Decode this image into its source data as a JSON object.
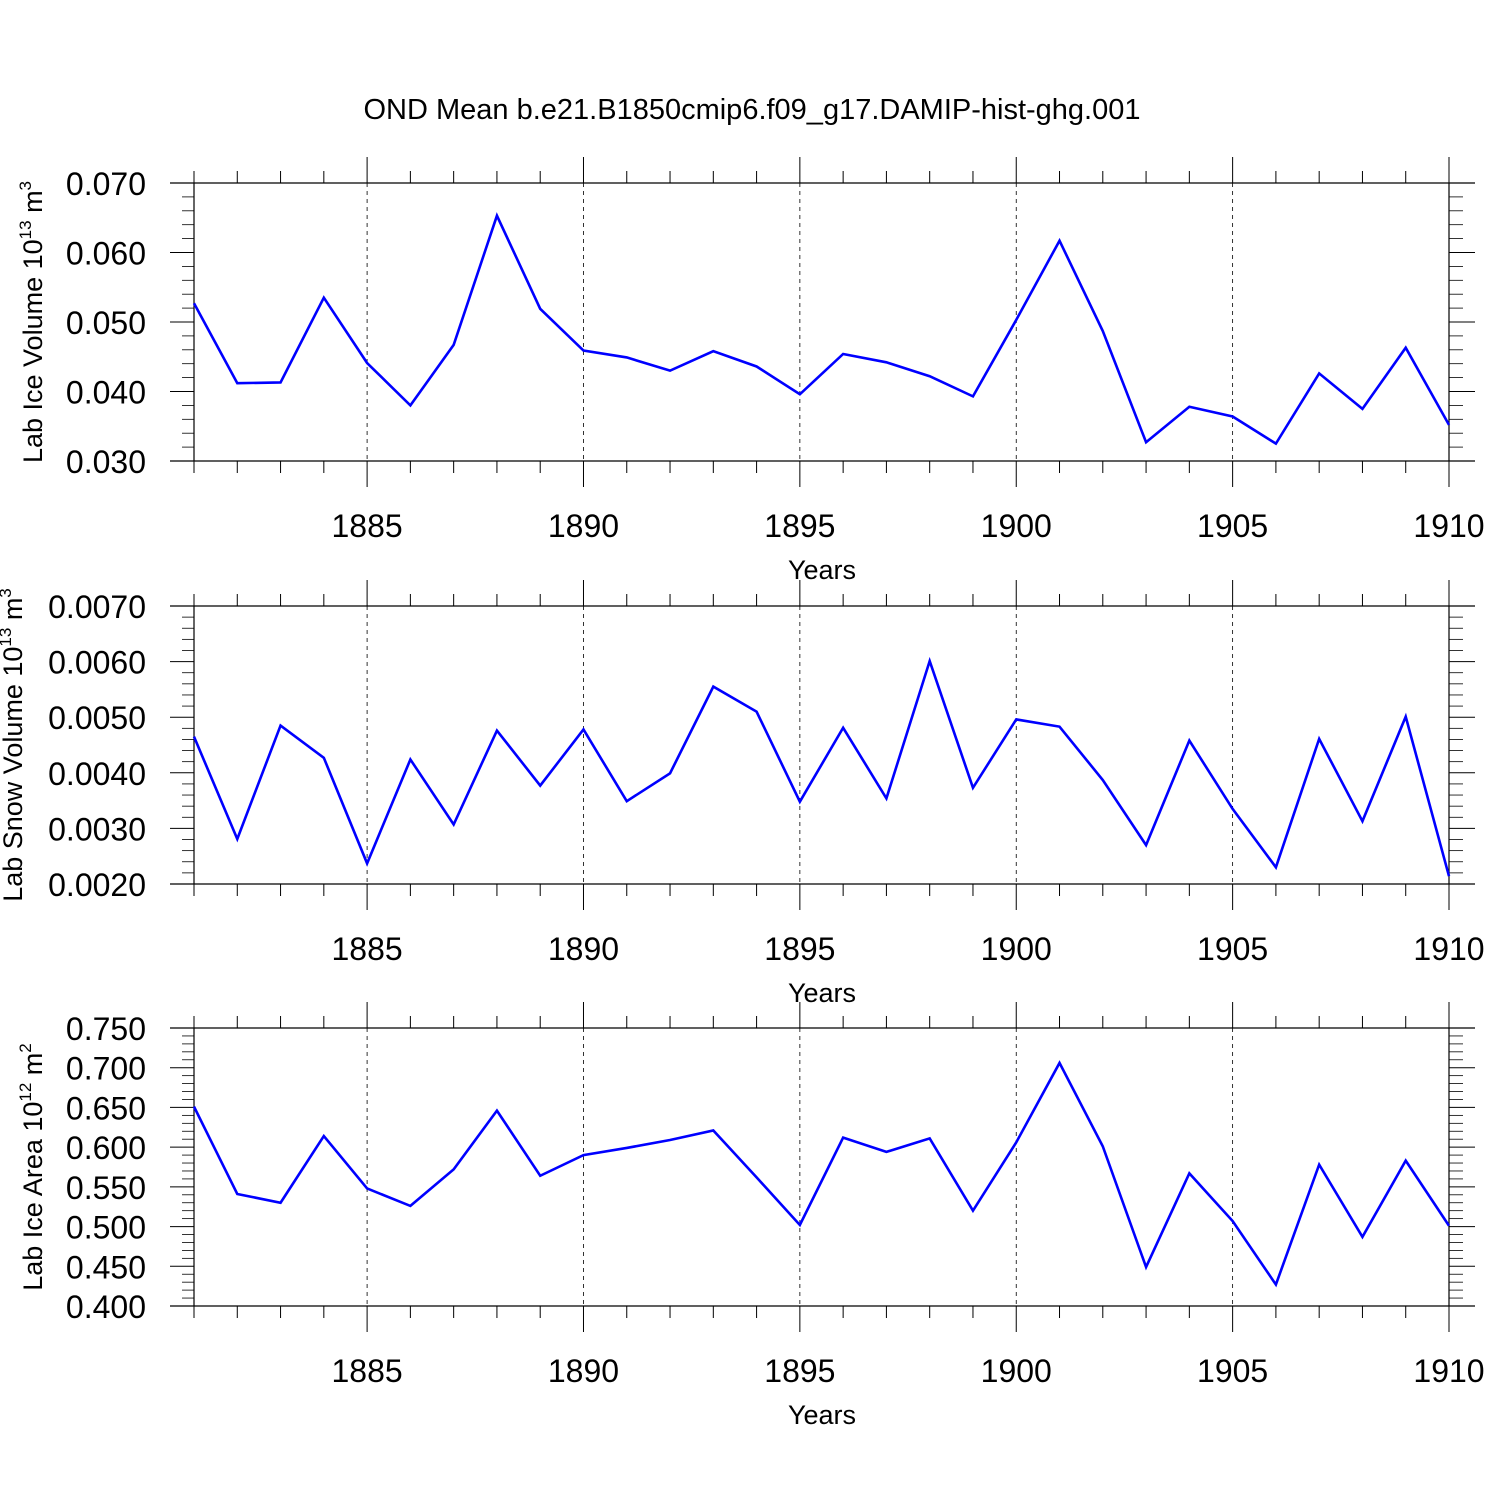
{
  "figure_title": "OND Mean b.e21.B1850cmip6.f09_g17.DAMIP-hist-ghg.001",
  "colors": {
    "line": "#0000ff",
    "axis": "#000000",
    "grid": "#000000"
  },
  "chart_data": [
    {
      "type": "line",
      "title": "OND Mean b.e21.B1850cmip6.f09_g17.DAMIP-hist-ghg.001",
      "xlabel": "Years",
      "ylabel": {
        "main": "Lab Ice Volume 10",
        "exponent": "13",
        "unit": " m",
        "unit_exponent": "3"
      },
      "xlim": [
        1881,
        1910
      ],
      "ylim": [
        0.03,
        0.07
      ],
      "xticks": [
        1885,
        1890,
        1895,
        1900,
        1905,
        1910
      ],
      "xtick_labels": [
        "1885",
        "1890",
        "1895",
        "1900",
        "1905",
        "1910"
      ],
      "yticks": [
        0.03,
        0.04,
        0.05,
        0.06,
        0.07
      ],
      "ytick_labels": [
        "0.030",
        "0.040",
        "0.050",
        "0.060",
        "0.070"
      ],
      "grid": "vertical dashed at major x ticks",
      "x": [
        1881,
        1882,
        1883,
        1884,
        1885,
        1886,
        1887,
        1888,
        1889,
        1890,
        1891,
        1892,
        1893,
        1894,
        1895,
        1896,
        1897,
        1898,
        1899,
        1900,
        1901,
        1902,
        1903,
        1904,
        1905,
        1906,
        1907,
        1908,
        1909,
        1910
      ],
      "series": [
        {
          "name": "Lab Ice Volume",
          "values": [
            0.0527,
            0.0412,
            0.0413,
            0.0535,
            0.0441,
            0.038,
            0.0467,
            0.0653,
            0.0519,
            0.0459,
            0.0449,
            0.043,
            0.0458,
            0.0436,
            0.0396,
            0.0454,
            0.0442,
            0.0422,
            0.0393,
            0.0503,
            0.0617,
            0.0487,
            0.0327,
            0.0378,
            0.0364,
            0.0325,
            0.0426,
            0.0375,
            0.0463,
            0.0352
          ]
        }
      ]
    },
    {
      "type": "line",
      "xlabel": "Years",
      "ylabel": {
        "main": "Lab Snow Volume 10",
        "exponent": "13",
        "unit": " m",
        "unit_exponent": "3"
      },
      "xlim": [
        1881,
        1910
      ],
      "ylim": [
        0.002,
        0.007
      ],
      "xticks": [
        1885,
        1890,
        1895,
        1900,
        1905,
        1910
      ],
      "xtick_labels": [
        "1885",
        "1890",
        "1895",
        "1900",
        "1905",
        "1910"
      ],
      "yticks": [
        0.002,
        0.003,
        0.004,
        0.005,
        0.006,
        0.007
      ],
      "ytick_labels": [
        "0.0020",
        "0.0030",
        "0.0040",
        "0.0050",
        "0.0060",
        "0.0070"
      ],
      "grid": "vertical dashed at major x ticks",
      "x": [
        1881,
        1882,
        1883,
        1884,
        1885,
        1886,
        1887,
        1888,
        1889,
        1890,
        1891,
        1892,
        1893,
        1894,
        1895,
        1896,
        1897,
        1898,
        1899,
        1900,
        1901,
        1902,
        1903,
        1904,
        1905,
        1906,
        1907,
        1908,
        1909,
        1910
      ],
      "series": [
        {
          "name": "Lab Snow Volume",
          "values": [
            0.00465,
            0.00281,
            0.00485,
            0.00427,
            0.00237,
            0.00424,
            0.00307,
            0.00476,
            0.00377,
            0.00478,
            0.00349,
            0.00399,
            0.00555,
            0.0051,
            0.00348,
            0.00481,
            0.00354,
            0.00601,
            0.00373,
            0.00496,
            0.00483,
            0.00387,
            0.0027,
            0.00458,
            0.00335,
            0.0023,
            0.00461,
            0.00313,
            0.00501,
            0.00214
          ]
        }
      ]
    },
    {
      "type": "line",
      "xlabel": "Years",
      "ylabel": {
        "main": "Lab Ice Area 10",
        "exponent": "12",
        "unit": " m",
        "unit_exponent": "2"
      },
      "xlim": [
        1881,
        1910
      ],
      "ylim": [
        0.4,
        0.75
      ],
      "xticks": [
        1885,
        1890,
        1895,
        1900,
        1905,
        1910
      ],
      "xtick_labels": [
        "1885",
        "1890",
        "1895",
        "1900",
        "1905",
        "1910"
      ],
      "yticks": [
        0.4,
        0.45,
        0.5,
        0.55,
        0.6,
        0.65,
        0.7,
        0.75
      ],
      "ytick_labels": [
        "0.400",
        "0.450",
        "0.500",
        "0.550",
        "0.600",
        "0.650",
        "0.700",
        "0.750"
      ],
      "grid": "vertical dashed at major x ticks",
      "x": [
        1881,
        1882,
        1883,
        1884,
        1885,
        1886,
        1887,
        1888,
        1889,
        1890,
        1891,
        1892,
        1893,
        1894,
        1895,
        1896,
        1897,
        1898,
        1899,
        1900,
        1901,
        1902,
        1903,
        1904,
        1905,
        1906,
        1907,
        1908,
        1909,
        1910
      ],
      "series": [
        {
          "name": "Lab Ice Area",
          "values": [
            0.651,
            0.541,
            0.53,
            0.614,
            0.548,
            0.526,
            0.572,
            0.646,
            0.564,
            0.59,
            0.599,
            0.609,
            0.621,
            0.562,
            0.502,
            0.612,
            0.594,
            0.611,
            0.52,
            0.606,
            0.706,
            0.601,
            0.449,
            0.567,
            0.507,
            0.427,
            0.578,
            0.487,
            0.583,
            0.501
          ]
        }
      ]
    }
  ]
}
